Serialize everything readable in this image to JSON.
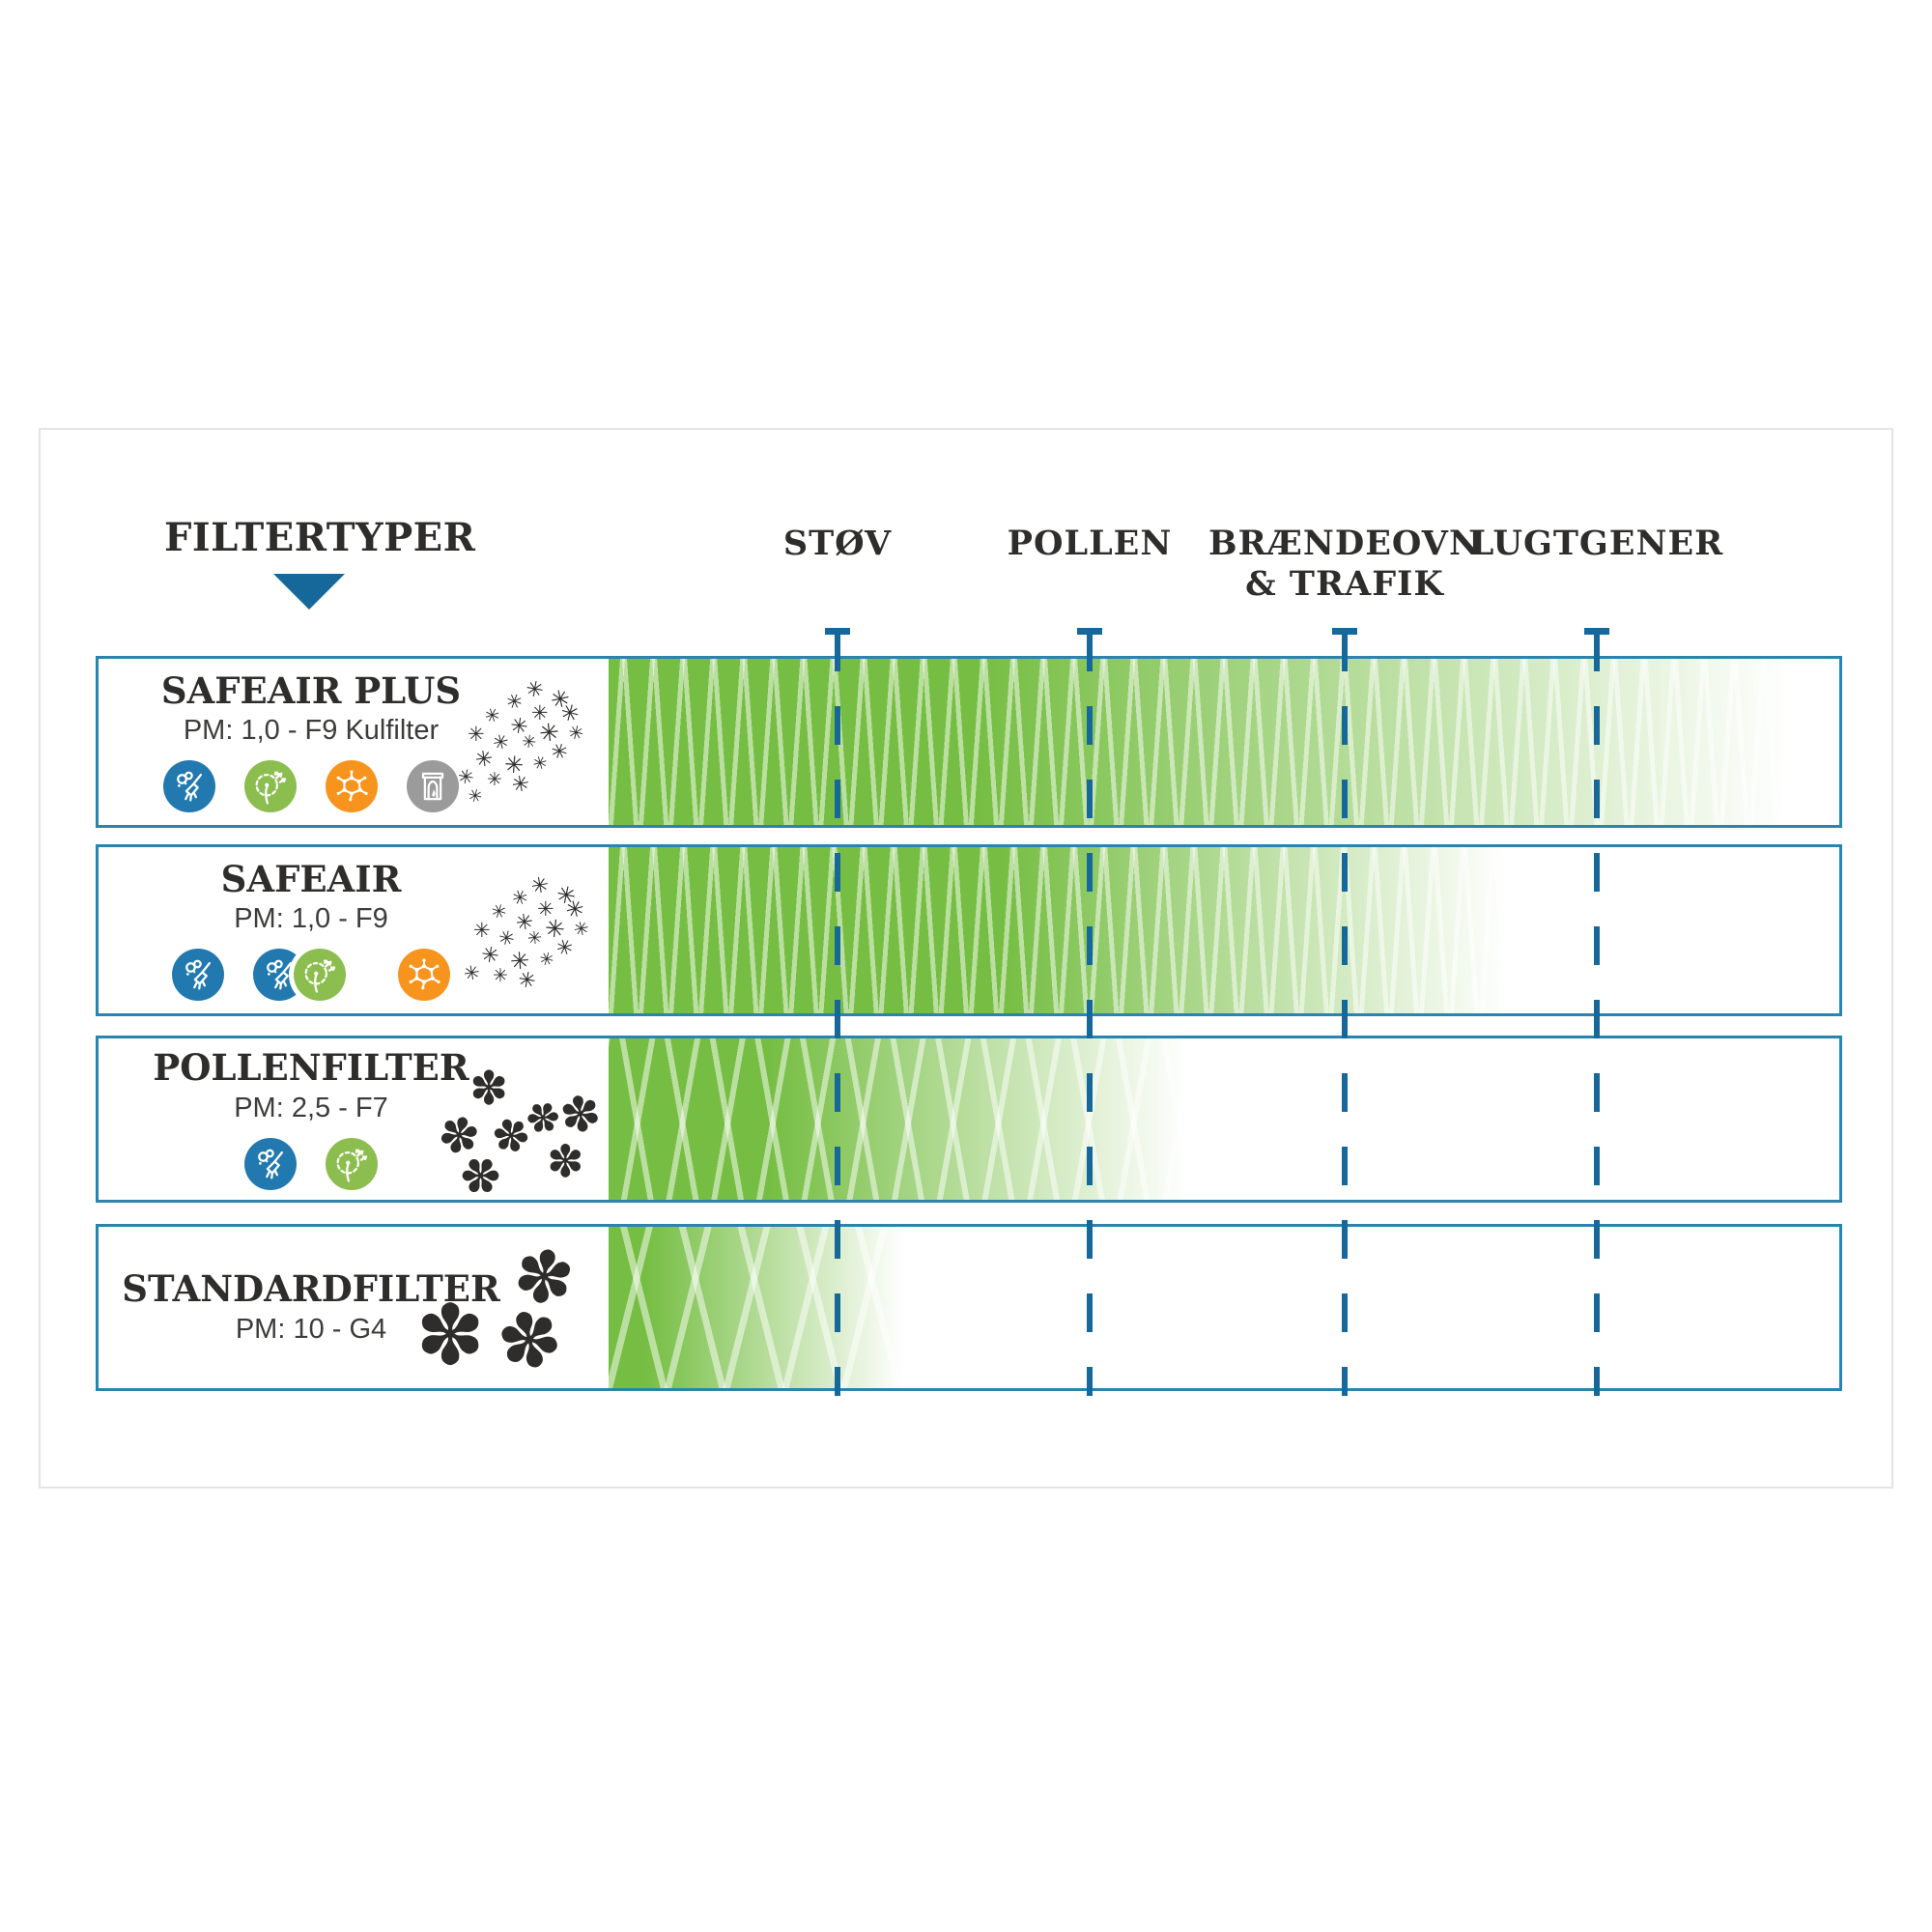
{
  "header": {
    "title": "FILTERTYPER"
  },
  "columns": [
    {
      "label": "STØV"
    },
    {
      "label": "POLLEN"
    },
    {
      "label": "BRÆNDEOVN",
      "label2": "& TRAFIK"
    },
    {
      "label": "LUGTGENER"
    }
  ],
  "rows": [
    {
      "title": "SAFEAIR PLUS",
      "spec": "PM: 1,0 - F9 Kulfilter",
      "icons": [
        "dust-icon",
        "pollen-icon",
        "molecule-icon",
        "fireplace-icon"
      ],
      "particle_glyph": "✳",
      "coverage": {
        "categories_covered": [
          "STØV",
          "POLLEN",
          "BRÆNDEOVN & TRAFIK",
          "LUGTGENER"
        ],
        "solid_until_pct": 30,
        "fade_end_pct": 96
      }
    },
    {
      "title": "SAFEAIR",
      "spec": "PM: 1,0 - F9",
      "icons": [
        "dust-icon",
        "dust-icon",
        "pollen-icon",
        "molecule-icon"
      ],
      "particle_glyph": "✳",
      "coverage": {
        "categories_covered": [
          "STØV",
          "POLLEN",
          "BRÆNDEOVN & TRAFIK"
        ],
        "solid_until_pct": 32,
        "fade_end_pct": 73
      }
    },
    {
      "title": "POLLENFILTER",
      "spec": "PM: 2,5 - F7",
      "icons": [
        "dust-icon",
        "pollen-icon"
      ],
      "particle_glyph": "✽",
      "coverage": {
        "categories_covered": [
          "STØV",
          "POLLEN"
        ],
        "solid_until_pct": 13,
        "fade_end_pct": 47
      }
    },
    {
      "title": "STANDARDFILTER",
      "spec": "PM: 10 - G4",
      "icons": [],
      "particle_glyph": "✽",
      "coverage": {
        "categories_covered": [
          "STØV"
        ],
        "solid_until_pct": 3,
        "fade_end_pct": 24
      }
    }
  ],
  "colors": {
    "bar_green": "#76be43",
    "zigzag_light": "rgba(255,255,255,0.5)",
    "guide_line_blue": "#16689b",
    "row_border_blue": "#2b84ad",
    "frame_border_gray": "#e4e4e4",
    "icon_blue": "#2279b0",
    "icon_green": "#8cbe4f",
    "icon_orange": "#f7941d",
    "icon_gray": "#9b9b9b",
    "text_dark": "#2e2d2c"
  }
}
